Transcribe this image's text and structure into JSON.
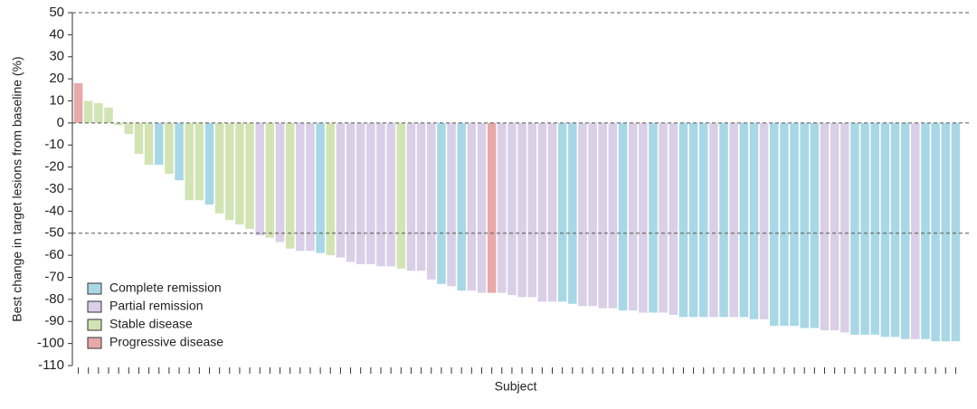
{
  "chart_data": {
    "type": "bar",
    "y_label": "Best change in target lesions from baseline (%)",
    "x_label": "Subject",
    "ylim": [
      -110,
      50
    ],
    "yticks": [
      50,
      40,
      30,
      20,
      10,
      0,
      -10,
      -20,
      -30,
      -40,
      -50,
      -60,
      -70,
      -80,
      -90,
      -100,
      -110
    ],
    "reference_lines": [
      50,
      0,
      -50
    ],
    "categories": [
      null,
      null,
      null,
      null,
      null,
      null,
      null,
      null,
      null,
      null,
      null,
      null,
      null,
      null,
      null,
      null,
      null,
      null,
      null,
      null,
      null,
      null,
      null,
      null,
      null,
      null,
      null,
      null,
      null,
      null,
      null,
      null,
      null,
      null,
      null,
      null,
      null,
      null,
      null,
      null,
      null,
      null,
      null,
      null,
      null,
      null,
      null,
      null,
      null,
      null,
      null,
      null,
      null,
      null,
      null,
      null,
      null,
      null,
      null,
      null,
      null,
      null,
      null,
      null,
      null,
      null,
      null,
      null,
      null,
      null,
      null,
      null,
      null,
      null,
      null,
      null,
      null,
      null,
      null,
      null,
      null,
      null,
      null,
      null,
      null,
      null,
      null,
      null
    ],
    "series": [
      {
        "name": "Complete remission",
        "color": "#a8d8e6",
        "values": [
          null,
          null,
          null,
          null,
          null,
          null,
          null,
          null,
          -19,
          null,
          -26,
          null,
          null,
          -37,
          null,
          null,
          null,
          null,
          null,
          null,
          null,
          null,
          null,
          null,
          -59,
          null,
          null,
          null,
          null,
          null,
          null,
          null,
          null,
          null,
          null,
          null,
          -73,
          null,
          -76,
          null,
          null,
          null,
          null,
          null,
          null,
          null,
          null,
          null,
          -81,
          -82,
          null,
          null,
          null,
          null,
          -85,
          null,
          null,
          -86,
          null,
          null,
          -88,
          -88,
          -88,
          null,
          -88,
          null,
          -88,
          -89,
          null,
          -92,
          -92,
          -92,
          -93,
          -93,
          null,
          null,
          null,
          -96,
          -96,
          -96,
          -97,
          -97,
          -98,
          null,
          -98,
          -99,
          -99,
          -99
        ]
      },
      {
        "name": "Partial remission",
        "color": "#d9cfe6",
        "values": [
          null,
          null,
          null,
          null,
          null,
          null,
          null,
          null,
          null,
          null,
          null,
          null,
          null,
          null,
          null,
          null,
          null,
          null,
          -51,
          null,
          -54,
          null,
          -58,
          -58,
          null,
          null,
          -61,
          -63,
          -64,
          -64,
          -65,
          -65,
          null,
          -67,
          -67,
          -71,
          null,
          -74,
          null,
          -76,
          -77,
          null,
          -77,
          -78,
          -79,
          -79,
          -81,
          -81,
          null,
          null,
          -83,
          -83,
          -84,
          -84,
          null,
          -85,
          -86,
          null,
          -86,
          -87,
          null,
          null,
          null,
          -88,
          null,
          -88,
          null,
          null,
          -89,
          null,
          null,
          null,
          null,
          null,
          -94,
          -94,
          -95,
          null,
          null,
          null,
          null,
          null,
          null,
          -98,
          null,
          null,
          null,
          null
        ]
      },
      {
        "name": "Stable disease",
        "color": "#d3e4b4",
        "values": [
          null,
          10,
          9,
          7,
          -1,
          -5,
          -14,
          -19,
          null,
          -23,
          null,
          -35,
          -35,
          null,
          -41,
          -44,
          -46,
          -48,
          null,
          -52,
          null,
          -57,
          null,
          null,
          null,
          -60,
          null,
          null,
          null,
          null,
          null,
          null,
          -66,
          null,
          null,
          null,
          null,
          null,
          null,
          null,
          null,
          null,
          null,
          null,
          null,
          null,
          null,
          null,
          null,
          null,
          null,
          null,
          null,
          null,
          null,
          null,
          null,
          null,
          null,
          null,
          null,
          null,
          null,
          null,
          null,
          null,
          null,
          null,
          null,
          null,
          null,
          null,
          null,
          null,
          null,
          null,
          null,
          null,
          null,
          null,
          null,
          null,
          null,
          null,
          null,
          null,
          null,
          null
        ]
      },
      {
        "name": "Progressive disease",
        "color": "#e8a9a9",
        "values": [
          18,
          null,
          null,
          null,
          null,
          null,
          null,
          null,
          null,
          null,
          null,
          null,
          null,
          null,
          null,
          null,
          null,
          null,
          null,
          null,
          null,
          null,
          null,
          null,
          null,
          null,
          null,
          null,
          null,
          null,
          null,
          null,
          null,
          null,
          null,
          null,
          null,
          null,
          null,
          null,
          null,
          -77,
          null,
          null,
          null,
          null,
          null,
          null,
          null,
          null,
          null,
          null,
          null,
          null,
          null,
          null,
          null,
          null,
          null,
          null,
          null,
          null,
          null,
          null,
          null,
          null,
          null,
          null,
          null,
          null,
          null,
          null,
          null,
          null,
          null,
          null,
          null,
          null,
          null,
          null,
          null,
          null,
          null,
          null,
          null,
          null,
          null,
          null
        ]
      }
    ]
  }
}
